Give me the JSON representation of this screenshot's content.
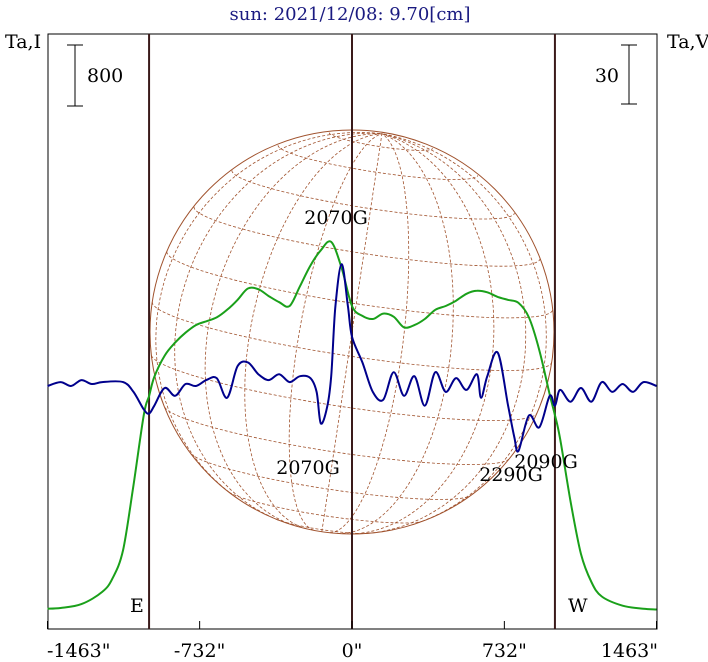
{
  "title": "sun: 2021/12/08: 9.70[cm]",
  "left_axis_label": "Ta,I",
  "right_axis_label": "Ta,V",
  "left_scale_bar": "800",
  "right_scale_bar": "30",
  "colors": {
    "intensity": "#1aa01a",
    "polarization": "#00008c",
    "disk": "#a0522d",
    "frame": "#000000",
    "title": "#1a1a80"
  },
  "chart_data": {
    "type": "line",
    "xlim": [
      -1463,
      1463
    ],
    "x_ticks": [
      {
        "value": -1463,
        "label": "-1463\""
      },
      {
        "value": -732,
        "label": "-732\""
      },
      {
        "value": 0,
        "label": "0\""
      },
      {
        "value": 732,
        "label": "732\""
      },
      {
        "value": 1463,
        "label": "1463\""
      }
    ],
    "limb_lines": [
      {
        "x": -975,
        "label": "E"
      },
      {
        "x": 975,
        "label": "W"
      }
    ],
    "series": [
      {
        "key": "intensity",
        "x": [
          -1463,
          -1400,
          -1300,
          -1200,
          -1150,
          -1100,
          -1050,
          -1000,
          -975,
          -950,
          -900,
          -850,
          -800,
          -750,
          -700,
          -650,
          -600,
          -550,
          -500,
          -450,
          -400,
          -350,
          -300,
          -250,
          -200,
          -150,
          -100,
          -50,
          0,
          50,
          100,
          150,
          200,
          250,
          300,
          350,
          400,
          450,
          500,
          550,
          600,
          650,
          700,
          750,
          800,
          850,
          900,
          950,
          975,
          1000,
          1050,
          1100,
          1150,
          1200,
          1300,
          1400,
          1463
        ],
        "y": [
          30,
          40,
          90,
          250,
          430,
          800,
          1650,
          2580,
          2820,
          3070,
          3350,
          3520,
          3650,
          3750,
          3800,
          3850,
          3950,
          4080,
          4230,
          4220,
          4130,
          4050,
          4000,
          4260,
          4530,
          4730,
          4840,
          4500,
          4000,
          3870,
          3830,
          3900,
          3860,
          3720,
          3750,
          3830,
          3950,
          4000,
          4070,
          4160,
          4200,
          4180,
          4120,
          4080,
          4040,
          3850,
          3420,
          2840,
          2570,
          2260,
          1440,
          750,
          380,
          190,
          70,
          30,
          20
        ]
      },
      {
        "key": "polarization",
        "x": [
          -1463,
          -1400,
          -1350,
          -1300,
          -1250,
          -1200,
          -1100,
          -1050,
          -1000,
          -975,
          -950,
          -900,
          -850,
          -800,
          -750,
          -700,
          -650,
          -600,
          -550,
          -500,
          -450,
          -400,
          -350,
          -300,
          -250,
          -200,
          -170,
          -150,
          -120,
          -100,
          -80,
          -50,
          -20,
          0,
          50,
          100,
          150,
          200,
          250,
          300,
          350,
          400,
          450,
          500,
          550,
          600,
          620,
          650,
          700,
          750,
          780,
          800,
          850,
          900,
          950,
          975,
          1000,
          1050,
          1100,
          1150,
          1200,
          1250,
          1300,
          1350,
          1400,
          1463
        ],
        "y": [
          0,
          2,
          0,
          3,
          1,
          2,
          2,
          -3,
          -12,
          -14,
          -10,
          -1,
          -5,
          1,
          0,
          3,
          4,
          -6,
          10,
          12,
          6,
          3,
          6,
          2,
          5,
          4,
          -3,
          -19,
          -11,
          5,
          40,
          62,
          41,
          25,
          12,
          -3,
          -7,
          7,
          -5,
          5,
          -10,
          7,
          -3,
          4,
          -2,
          6,
          -6,
          5,
          17,
          -10,
          -26,
          -33,
          -15,
          -21,
          -5,
          -10,
          -2,
          -8,
          -1,
          -8,
          2,
          -3,
          1,
          -3,
          2,
          0
        ]
      }
    ],
    "annotations": [
      "2070G",
      "2070G",
      "2290G",
      "2090G"
    ],
    "grid": false
  }
}
